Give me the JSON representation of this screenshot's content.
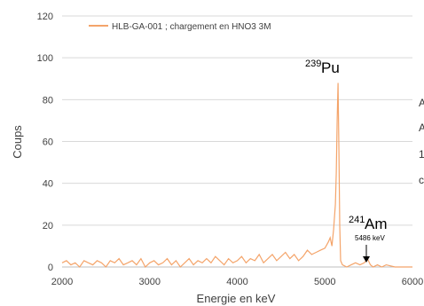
{
  "chart_data": {
    "type": "line",
    "xlabel": "Energie en keV",
    "ylabel": "Coups",
    "xlim": [
      2000,
      6000
    ],
    "ylim": [
      0,
      120
    ],
    "x_ticks": [
      "2000",
      "3000",
      "4000",
      "5000",
      "6000"
    ],
    "y_ticks": [
      "0",
      "20",
      "40",
      "60",
      "80",
      "100",
      "120"
    ],
    "grid": "horizontal",
    "legend_position": "top-left",
    "colors": {
      "series": "#f4a46a"
    },
    "series": [
      {
        "name": "HLB-GA-001 ; chargement en HNO3 3M",
        "x": [
          2000,
          2050,
          2100,
          2150,
          2200,
          2250,
          2300,
          2350,
          2400,
          2450,
          2500,
          2550,
          2600,
          2650,
          2700,
          2750,
          2800,
          2850,
          2900,
          2950,
          3000,
          3050,
          3100,
          3150,
          3200,
          3250,
          3300,
          3350,
          3400,
          3450,
          3500,
          3550,
          3600,
          3650,
          3700,
          3750,
          3800,
          3850,
          3900,
          3950,
          4000,
          4050,
          4100,
          4150,
          4200,
          4250,
          4300,
          4350,
          4400,
          4450,
          4500,
          4550,
          4600,
          4650,
          4700,
          4750,
          4800,
          4850,
          4900,
          4950,
          5000,
          5040,
          5060,
          5080,
          5100,
          5120,
          5130,
          5140,
          5150,
          5160,
          5170,
          5180,
          5200,
          5250,
          5300,
          5350,
          5400,
          5450,
          5486,
          5520,
          5550,
          5600,
          5650,
          5700,
          5800,
          5900,
          6000
        ],
        "values": [
          2,
          3,
          1,
          2,
          0,
          3,
          2,
          1,
          3,
          2,
          0,
          3,
          2,
          4,
          1,
          2,
          3,
          1,
          4,
          0,
          2,
          3,
          1,
          2,
          4,
          1,
          3,
          0,
          2,
          4,
          1,
          3,
          2,
          4,
          2,
          5,
          3,
          1,
          4,
          2,
          3,
          5,
          2,
          4,
          3,
          6,
          2,
          4,
          6,
          3,
          5,
          7,
          4,
          6,
          3,
          5,
          8,
          6,
          7,
          8,
          9,
          12,
          14,
          10,
          18,
          30,
          45,
          70,
          88,
          55,
          20,
          3,
          1,
          0,
          1,
          2,
          1,
          2,
          4,
          1,
          0,
          1,
          0,
          1,
          0,
          0,
          0
        ]
      }
    ],
    "annotations": [
      {
        "label_mass": "239",
        "label_element": "Pu"
      },
      {
        "label_mass": "241",
        "label_element": "Am",
        "energy_label": "5486 keV"
      }
    ]
  },
  "edge_fragments": [
    "A",
    "A",
    "1",
    "c"
  ]
}
